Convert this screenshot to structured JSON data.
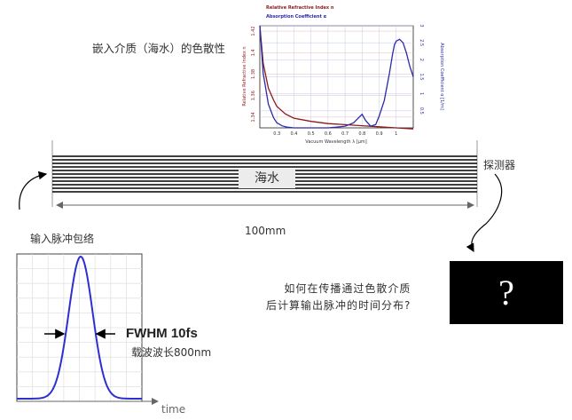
{
  "dispersion_title": "嵌入介质（海水）的色散性",
  "medium_label": "海水",
  "detector_label": "探测器",
  "length_label": "100mm",
  "pulse_label": "输入脉冲包络",
  "fwhm_label": "FWHM 10fs",
  "carrier_label": "载波波长800nm",
  "time_label": "time",
  "question_lines": [
    "如何在传播通过色散介质",
    "后计算输出脉冲的时间分布?"
  ],
  "question_mark": "?",
  "colors": {
    "refractive": "#8b1a1a",
    "absorption": "#2a2aa8",
    "pulse": "#2f2fd0",
    "fiber": "#000000"
  },
  "chart_data": {
    "type": "line",
    "legend": [
      "Relative Refractive Index n",
      "Absorption Coefficient α"
    ],
    "xlabel": "Vacuum Wavelength λ [μm]",
    "ylabel_left": "Relative Refractive Index n",
    "ylabel_right": "Absorption Coefficient α [1/m]",
    "x_ticks": [
      "0.3",
      "0.4",
      "0.5",
      "0.6",
      "0.7",
      "0.8",
      "0.9",
      "1"
    ],
    "y_left_ticks": [
      "1.34",
      "1.36",
      "1.38",
      "1.4",
      "1.42"
    ],
    "y_right_ticks": [
      "0.5",
      "1",
      "1.5",
      "2",
      "2.5",
      "3"
    ],
    "xlim": [
      0.2,
      1.1
    ],
    "ylim_left": [
      1.33,
      1.425
    ],
    "ylim_right": [
      0,
      3
    ],
    "series": [
      {
        "name": "Relative Refractive Index n",
        "axis": "left",
        "x": [
          0.2,
          0.22,
          0.25,
          0.28,
          0.3,
          0.35,
          0.4,
          0.5,
          0.6,
          0.7,
          0.8,
          0.9,
          1.0,
          1.1
        ],
        "values": [
          1.425,
          1.39,
          1.367,
          1.356,
          1.35,
          1.343,
          1.339,
          1.336,
          1.334,
          1.333,
          1.332,
          1.331,
          1.33,
          1.329
        ]
      },
      {
        "name": "Absorption Coefficient α",
        "axis": "right",
        "x": [
          0.2,
          0.22,
          0.25,
          0.28,
          0.3,
          0.33,
          0.36,
          0.4,
          0.5,
          0.6,
          0.65,
          0.7,
          0.75,
          0.8,
          0.82,
          0.85,
          0.88,
          0.9,
          0.93,
          0.96,
          0.98,
          0.99,
          1.0,
          1.02,
          1.04,
          1.06,
          1.08,
          1.1
        ],
        "values": [
          3.0,
          1.6,
          0.7,
          0.3,
          0.15,
          0.06,
          0.02,
          0.0,
          0.0,
          0.0,
          0.02,
          0.05,
          0.15,
          0.4,
          0.22,
          0.05,
          0.1,
          0.35,
          0.8,
          1.6,
          2.2,
          2.45,
          2.55,
          2.6,
          2.5,
          2.2,
          1.8,
          1.5
        ]
      }
    ]
  }
}
